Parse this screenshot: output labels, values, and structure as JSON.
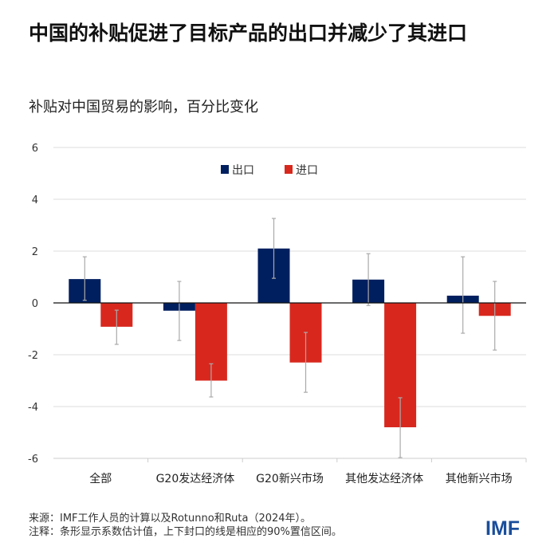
{
  "title": "中国的补贴促进了目标产品的出口并减少了其进口",
  "subtitle": "补贴对中国贸易的影响，百分比变化",
  "source": "来源：IMF工作人员的计算以及Rotunno和Ruta（2024年）。",
  "note": "注释：条形显示系数估计值，上下封口的线是相应的90%置信区间。",
  "logo": "IMF",
  "chart_data": {
    "type": "bar",
    "categories": [
      "全部",
      "G20发达经济体",
      "G20新兴市场",
      "其他发达经济体",
      "其他新兴市场"
    ],
    "series": [
      {
        "name": "出口",
        "color": "#001f5f",
        "values": [
          0.92,
          -0.3,
          2.1,
          0.9,
          0.28
        ],
        "ci_low": [
          0.1,
          -1.45,
          0.95,
          -0.1,
          -1.17
        ],
        "ci_high": [
          1.78,
          0.83,
          3.26,
          1.9,
          1.78
        ]
      },
      {
        "name": "进口",
        "color": "#d8281e",
        "values": [
          -0.92,
          -3.0,
          -2.3,
          -4.8,
          -0.5
        ],
        "ci_low": [
          -1.6,
          -3.63,
          -3.45,
          -5.97,
          -1.82
        ],
        "ci_high": [
          -0.28,
          -2.35,
          -1.14,
          -3.66,
          0.83
        ]
      }
    ],
    "ylim": [
      -6,
      6
    ],
    "yticks": [
      6,
      4,
      2,
      0,
      -2,
      -4,
      -6
    ],
    "grid": true,
    "legend": "top-center"
  }
}
